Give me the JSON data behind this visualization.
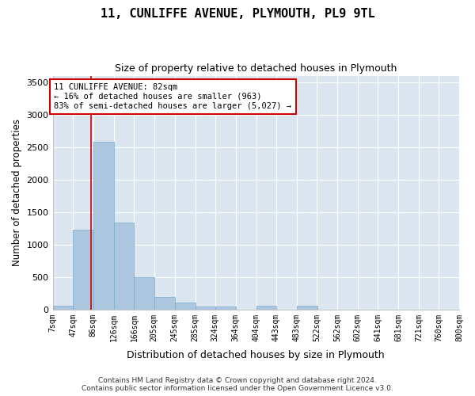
{
  "title": "11, CUNLIFFE AVENUE, PLYMOUTH, PL9 9TL",
  "subtitle": "Size of property relative to detached houses in Plymouth",
  "xlabel": "Distribution of detached houses by size in Plymouth",
  "ylabel": "Number of detached properties",
  "bar_color": "#adc6e0",
  "bar_edge_color": "#7aaac8",
  "background_color": "#dce6f0",
  "fig_background": "#ffffff",
  "bin_labels": [
    "7sqm",
    "47sqm",
    "86sqm",
    "126sqm",
    "166sqm",
    "205sqm",
    "245sqm",
    "285sqm",
    "324sqm",
    "364sqm",
    "404sqm",
    "443sqm",
    "483sqm",
    "522sqm",
    "562sqm",
    "602sqm",
    "641sqm",
    "681sqm",
    "721sqm",
    "760sqm",
    "800sqm"
  ],
  "bin_edges": [
    7,
    47,
    86,
    126,
    166,
    205,
    245,
    285,
    324,
    364,
    404,
    443,
    483,
    522,
    562,
    602,
    641,
    681,
    721,
    760,
    800
  ],
  "bar_heights": [
    55,
    1225,
    2580,
    1340,
    500,
    195,
    108,
    52,
    45,
    0,
    55,
    0,
    55,
    0,
    0,
    0,
    0,
    0,
    0,
    0
  ],
  "ylim": [
    0,
    3600
  ],
  "yticks": [
    0,
    500,
    1000,
    1500,
    2000,
    2500,
    3000,
    3500
  ],
  "property_size": 82,
  "annotation_line1": "11 CUNLIFFE AVENUE: 82sqm",
  "annotation_line2": "← 16% of detached houses are smaller (963)",
  "annotation_line3": "83% of semi-detached houses are larger (5,027) →",
  "red_line_color": "#cc0000",
  "annotation_box_color": "#ffffff",
  "annotation_box_edge": "#cc0000",
  "footer1": "Contains HM Land Registry data © Crown copyright and database right 2024.",
  "footer2": "Contains public sector information licensed under the Open Government Licence v3.0."
}
